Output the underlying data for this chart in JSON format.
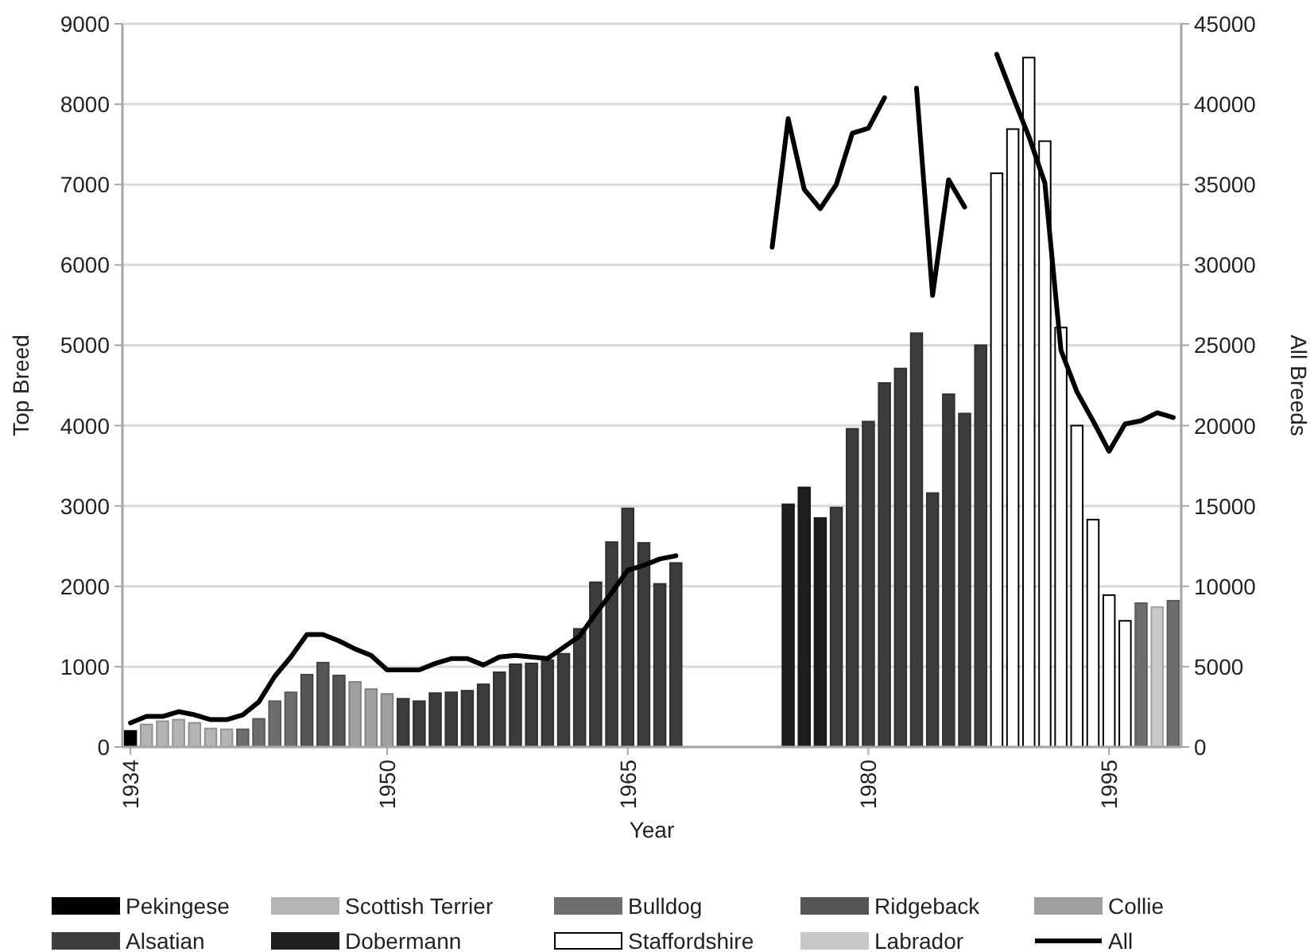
{
  "chart_data": {
    "type": "bar",
    "xlabel": "Year",
    "ylabel": "Top Breed",
    "y2label": "All Breeds",
    "x": [
      1934,
      1935,
      1936,
      1937,
      1938,
      1939,
      1940,
      1941,
      1942,
      1943,
      1944,
      1945,
      1946,
      1947,
      1948,
      1949,
      1950,
      1951,
      1952,
      1953,
      1954,
      1955,
      1956,
      1957,
      1958,
      1959,
      1960,
      1961,
      1962,
      1963,
      1964,
      1965,
      1966,
      1967,
      1968,
      1969,
      1970,
      1971,
      1972,
      1973,
      1974,
      1975,
      1976,
      1977,
      1978,
      1979,
      1980,
      1981,
      1982,
      1983,
      1984,
      1985,
      1986,
      1987,
      1988,
      1989,
      1990,
      1991,
      1992,
      1993,
      1994,
      1995,
      1996,
      1997,
      1998,
      1999
    ],
    "xlim": [
      1933.5,
      1999.5
    ],
    "xticks": [
      1934,
      1950,
      1965,
      1980,
      1995
    ],
    "ylim": [
      0,
      9000
    ],
    "yticks": [
      0,
      1000,
      2000,
      3000,
      4000,
      5000,
      6000,
      7000,
      8000,
      9000
    ],
    "y2lim": [
      0,
      45000
    ],
    "y2ticks": [
      0,
      5000,
      10000,
      15000,
      20000,
      25000,
      30000,
      35000,
      40000,
      45000
    ],
    "grid": "y",
    "legend": "bottom",
    "series": [
      {
        "name": "Pekingese",
        "color": "#000000",
        "x": [
          1934
        ],
        "values": [
          200
        ]
      },
      {
        "name": "Scottish Terrier",
        "color": "#b4b4b4",
        "x": [
          1935,
          1936,
          1937,
          1938,
          1939,
          1940
        ],
        "values": [
          280,
          320,
          340,
          300,
          230,
          220
        ]
      },
      {
        "name": "Bulldog",
        "color": "#6e6e6e",
        "x": [
          1941,
          1942,
          1943,
          1944,
          1997,
          1999
        ],
        "values": [
          220,
          350,
          570,
          680,
          1790,
          1820
        ]
      },
      {
        "name": "Ridgeback",
        "color": "#555555",
        "x": [
          1945,
          1946,
          1947
        ],
        "values": [
          900,
          1050,
          890
        ]
      },
      {
        "name": "Collie",
        "color": "#a0a0a0",
        "x": [
          1948,
          1949,
          1950
        ],
        "values": [
          810,
          720,
          660
        ]
      },
      {
        "name": "Alsatian",
        "color": "#3c3c3c",
        "x": [
          1951,
          1952,
          1953,
          1954,
          1955,
          1956,
          1957,
          1958,
          1959,
          1960,
          1961,
          1962,
          1963,
          1964,
          1965,
          1966,
          1967,
          1968,
          1978,
          1979,
          1980,
          1981,
          1982,
          1983,
          1984,
          1985,
          1986,
          1987
        ],
        "values": [
          600,
          570,
          670,
          680,
          700,
          780,
          930,
          1030,
          1040,
          1080,
          1160,
          1470,
          2050,
          2550,
          2970,
          2540,
          2030,
          2290,
          2980,
          3960,
          4050,
          4530,
          4710,
          5150,
          3160,
          4390,
          4150,
          5000
        ]
      },
      {
        "name": "Dobermann",
        "color": "#1e1e1e",
        "x": [
          1975,
          1976,
          1977
        ],
        "values": [
          3020,
          3230,
          2850
        ]
      },
      {
        "name": "Staffordshire",
        "color": "#ffffff",
        "x": [
          1988,
          1989,
          1990,
          1991,
          1992,
          1993,
          1994,
          1995,
          1996
        ],
        "values": [
          7140,
          7690,
          8580,
          7540,
          5220,
          4000,
          2830,
          1890,
          1570
        ]
      },
      {
        "name": "Labrador",
        "color": "#c8c8c8",
        "x": [
          1998
        ],
        "values": [
          1740
        ]
      },
      {
        "name": "All",
        "type": "line",
        "axis": "y2",
        "color": "#000000",
        "line_style": "solid",
        "marker": "none",
        "values": [
          1500,
          1900,
          1900,
          2200,
          2000,
          1700,
          1700,
          2000,
          2800,
          4400,
          5600,
          7000,
          7000,
          6600,
          6100,
          5700,
          4800,
          4800,
          4800,
          5200,
          5500,
          5500,
          5100,
          5600,
          5700,
          5600,
          5500,
          6200,
          6900,
          8300,
          9600,
          11000,
          11300,
          11700,
          11900,
          null,
          null,
          null,
          null,
          null,
          31100,
          39100,
          34700,
          33500,
          35000,
          38200,
          38500,
          40400,
          null,
          41000,
          28100,
          35300,
          33600,
          null,
          43100,
          40500,
          38000,
          35100,
          24700,
          22100,
          20300,
          18400,
          20100,
          20300,
          20800,
          20500
        ]
      }
    ]
  }
}
